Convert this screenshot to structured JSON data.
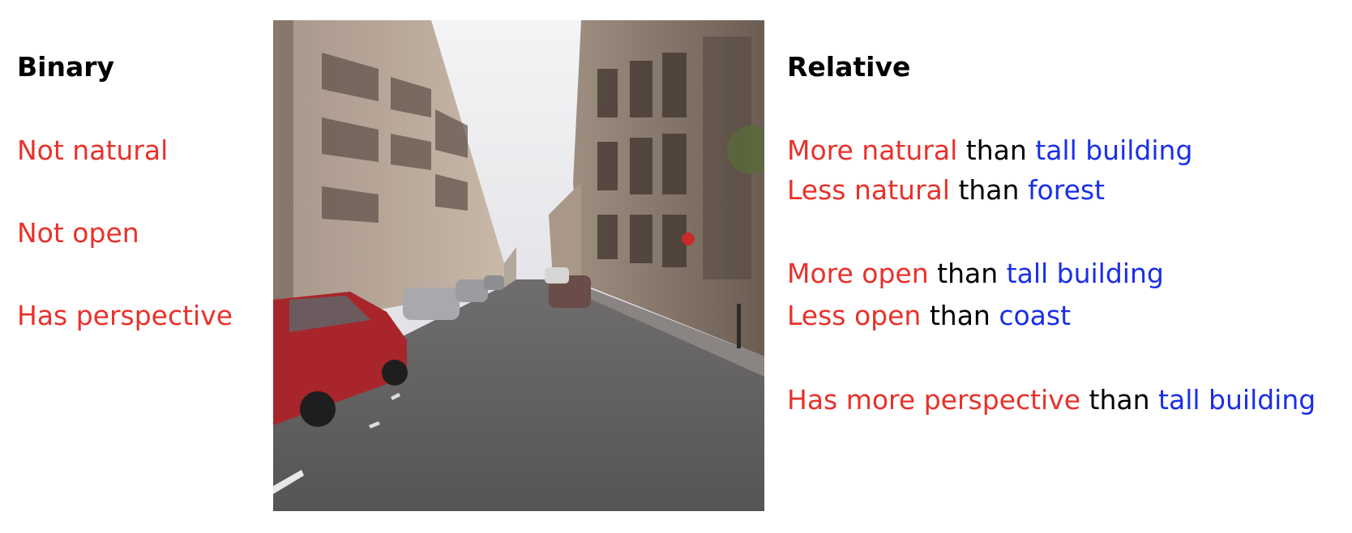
{
  "colors": {
    "attribute": "#e8312a",
    "connector": "#000000",
    "reference": "#1a2ee8"
  },
  "binary": {
    "heading": "Binary",
    "items": [
      "Not natural",
      "Not open",
      "Has perspective"
    ]
  },
  "relative": {
    "heading": "Relative",
    "items": [
      {
        "attribute": "More natural",
        "connector": "than",
        "reference": "tall building"
      },
      {
        "attribute": "Less natural",
        "connector": "than",
        "reference": "forest"
      },
      {
        "attribute": "More open",
        "connector": "than",
        "reference": "tall building"
      },
      {
        "attribute": "Less open",
        "connector": "than",
        "reference": "coast"
      },
      {
        "attribute": "Has more perspective",
        "connector": "than",
        "reference": "tall building"
      }
    ]
  },
  "image": {
    "subject": "city street with parked cars and buildings"
  }
}
